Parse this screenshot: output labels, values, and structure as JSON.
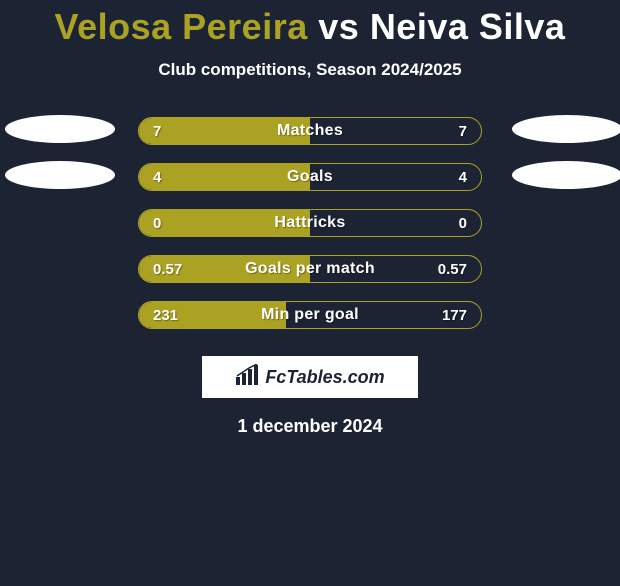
{
  "header": {
    "player1": "Velosa Pereira",
    "vs": "vs",
    "player2": "Neiva Silva",
    "player1_color": "#aba223",
    "player2_color": "#ffffff",
    "subtitle": "Club competitions, Season 2024/2025"
  },
  "chart": {
    "type": "bar",
    "bar_bg_player1": "#aba223",
    "bar_border": "#aba223",
    "bar_bg_empty": "transparent",
    "text_color": "#ffffff",
    "rows": [
      {
        "label": "Matches",
        "v1": "7",
        "v2": "7",
        "v1_num": 7,
        "v2_num": 7,
        "fill_pct": 50,
        "ellipse_left": true,
        "ellipse_right": true
      },
      {
        "label": "Goals",
        "v1": "4",
        "v2": "4",
        "v1_num": 4,
        "v2_num": 4,
        "fill_pct": 50,
        "ellipse_left": true,
        "ellipse_right": true
      },
      {
        "label": "Hattricks",
        "v1": "0",
        "v2": "0",
        "v1_num": 0,
        "v2_num": 0,
        "fill_pct": 50,
        "ellipse_left": false,
        "ellipse_right": false
      },
      {
        "label": "Goals per match",
        "v1": "0.57",
        "v2": "0.57",
        "v1_num": 0.57,
        "v2_num": 0.57,
        "fill_pct": 50,
        "ellipse_left": false,
        "ellipse_right": false
      },
      {
        "label": "Min per goal",
        "v1": "231",
        "v2": "177",
        "v1_num": 231,
        "v2_num": 177,
        "fill_pct": 43,
        "ellipse_left": false,
        "ellipse_right": false
      }
    ]
  },
  "branding": {
    "text": "FcTables.com"
  },
  "date": "1 december 2024",
  "colors": {
    "page_bg": "#1c2434",
    "ellipse_bg": "#ffffff",
    "branding_bg": "#ffffff",
    "branding_fg": "#1c2434"
  }
}
